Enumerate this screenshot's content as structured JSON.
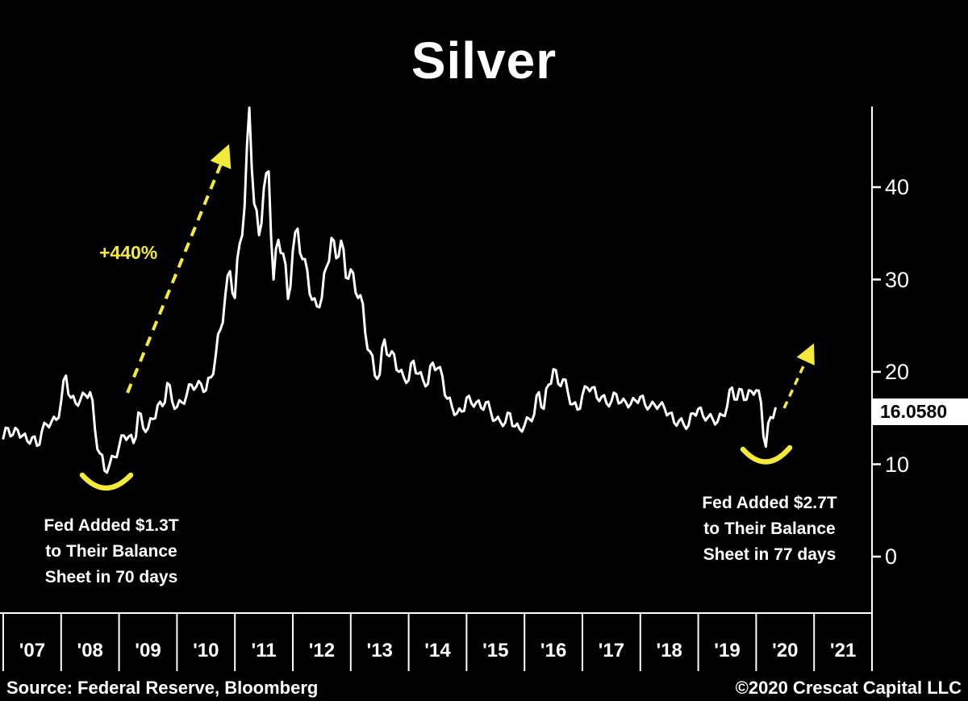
{
  "chart_data": {
    "type": "line",
    "title": "Silver",
    "x_start_year": 2007,
    "x_interval": "monthly",
    "x_tick_labels": [
      "'07",
      "'08",
      "'09",
      "'10",
      "'11",
      "'12",
      "'13",
      "'14",
      "'15",
      "'16",
      "'17",
      "'18",
      "'19",
      "'20",
      "'21"
    ],
    "y_ticks": [
      40,
      30,
      20,
      10,
      0
    ],
    "ylim": [
      0,
      50
    ],
    "grid": "off",
    "legend": "none",
    "values": [
      12.8,
      13.9,
      13.2,
      13.7,
      13.1,
      12.5,
      12.9,
      12.0,
      13.6,
      14.3,
      14.6,
      14.8,
      16.8,
      19.6,
      17.2,
      16.6,
      17.0,
      17.5,
      17.8,
      13.8,
      11.2,
      9.3,
      9.9,
      10.8,
      11.9,
      13.1,
      13.0,
      12.3,
      15.6,
      13.9,
      13.9,
      14.9,
      16.4,
      16.3,
      18.8,
      16.8,
      16.2,
      16.7,
      17.5,
      18.6,
      18.4,
      18.7,
      18.0,
      19.4,
      21.7,
      24.6,
      28.2,
      30.9,
      28.0,
      33.9,
      37.9,
      48.6,
      38.2,
      34.8,
      39.9,
      41.7,
      30.0,
      34.3,
      32.8,
      27.9,
      33.1,
      35.5,
      32.2,
      31.0,
      27.8,
      27.1,
      28.0,
      31.4,
      34.5,
      32.3,
      34.2,
      30.2,
      31.1,
      28.6,
      28.3,
      24.2,
      22.2,
      19.6,
      19.7,
      23.5,
      21.7,
      21.9,
      20.0,
      19.4,
      19.1,
      21.2,
      19.8,
      19.1,
      18.7,
      21.0,
      20.4,
      19.5,
      17.1,
      16.2,
      15.5,
      15.7,
      17.2,
      16.6,
      16.7,
      16.1,
      16.7,
      15.7,
      14.8,
      14.6,
      14.5,
      15.5,
      14.1,
      13.8,
      14.2,
      14.9,
      15.4,
      17.8,
      16.0,
      18.6,
      20.3,
      18.7,
      19.2,
      17.8,
      16.5,
      15.9,
      17.5,
      18.3,
      18.3,
      17.2,
      17.3,
      16.6,
      16.8,
      17.6,
      16.7,
      16.7,
      16.5,
      16.9,
      17.3,
      16.4,
      16.3,
      16.4,
      16.4,
      16.1,
      15.5,
      14.5,
      14.7,
      14.3,
      14.2,
      15.5,
      16.0,
      15.2,
      15.1,
      14.9,
      14.6,
      15.3,
      16.3,
      18.3,
      17.0,
      18.1,
      17.0,
      17.9,
      18.0,
      16.7,
      11.9,
      15.1,
      16.058
    ],
    "last_value": 16.058,
    "last_value_label": "16.0580",
    "colors": {
      "background": "#000000",
      "line": "#ffffff",
      "accent": "#f3ea3a",
      "label_box_bg": "#ffffff",
      "label_box_text": "#000000"
    },
    "annotations": {
      "gain_label": "+440%",
      "fed1": {
        "lines": [
          "Fed Added $1.3T",
          "to Their Balance",
          "Sheet in 70 days"
        ]
      },
      "fed2": {
        "lines": [
          "Fed Added $2.7T",
          "to Their Balance",
          "Sheet in 77 days"
        ]
      }
    }
  },
  "footer": {
    "source": "Source: Federal Reserve, Bloomberg",
    "copyright": "©2020 Crescat Capital LLC"
  }
}
